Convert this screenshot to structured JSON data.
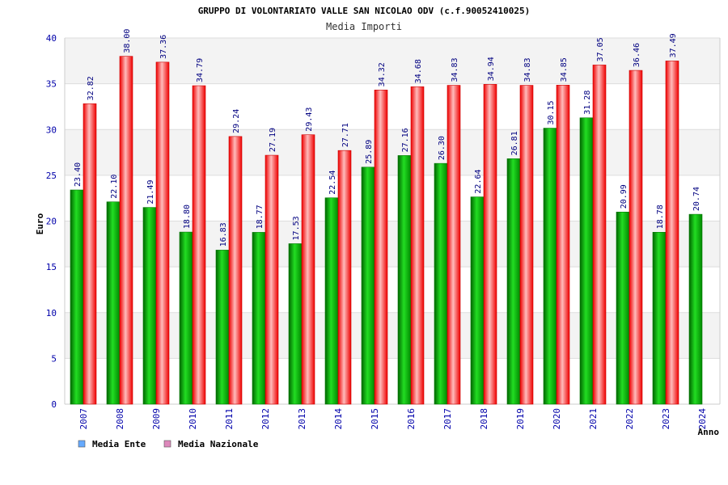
{
  "chart_data": {
    "type": "bar",
    "title": "GRUPPO DI VOLONTARIATO VALLE SAN NICOLAO ODV (c.f.90052410025)",
    "subtitle": "Media Importi",
    "ylabel": "Euro",
    "xlabel": "Anno",
    "ylim": [
      0,
      40
    ],
    "yticks": [
      0,
      5,
      10,
      15,
      20,
      25,
      30,
      35,
      40
    ],
    "grid": true,
    "legend_position": "bottom-left",
    "categories": [
      "2007",
      "2008",
      "2009",
      "2010",
      "2011",
      "2012",
      "2013",
      "2014",
      "2015",
      "2016",
      "2017",
      "2018",
      "2019",
      "2020",
      "2021",
      "2022",
      "2023",
      "2024"
    ],
    "series": [
      {
        "name": "Media Ente",
        "color": "#00aa00",
        "legend_color": "#66aaff",
        "values": [
          23.4,
          22.1,
          21.49,
          18.8,
          16.83,
          18.77,
          17.53,
          22.54,
          25.89,
          27.16,
          26.3,
          22.64,
          26.81,
          30.15,
          31.28,
          20.99,
          18.78,
          20.74
        ],
        "labels": [
          "23.40",
          "22.10",
          "21.49",
          "18.80",
          "16.83",
          "18.77",
          "17.53",
          "22.54",
          "25.89",
          "27.16",
          "26.30",
          "22.64",
          "26.81",
          "30.15",
          "31.28",
          "20.99",
          "18.78",
          "20.74"
        ]
      },
      {
        "name": "Media Nazionale",
        "color": "#ee1111",
        "legend_color": "#dd88bb",
        "values": [
          32.82,
          38.0,
          37.36,
          34.79,
          29.24,
          27.19,
          29.43,
          27.71,
          34.32,
          34.68,
          34.83,
          34.94,
          34.83,
          34.85,
          37.05,
          36.46,
          37.49,
          null
        ],
        "labels": [
          "32.82",
          "38.00",
          "37.36",
          "34.79",
          "29.24",
          "27.19",
          "29.43",
          "27.71",
          "34.32",
          "34.68",
          "34.83",
          "34.94",
          "34.83",
          "34.85",
          "37.05",
          "36.46",
          "37.49",
          ""
        ]
      }
    ]
  }
}
